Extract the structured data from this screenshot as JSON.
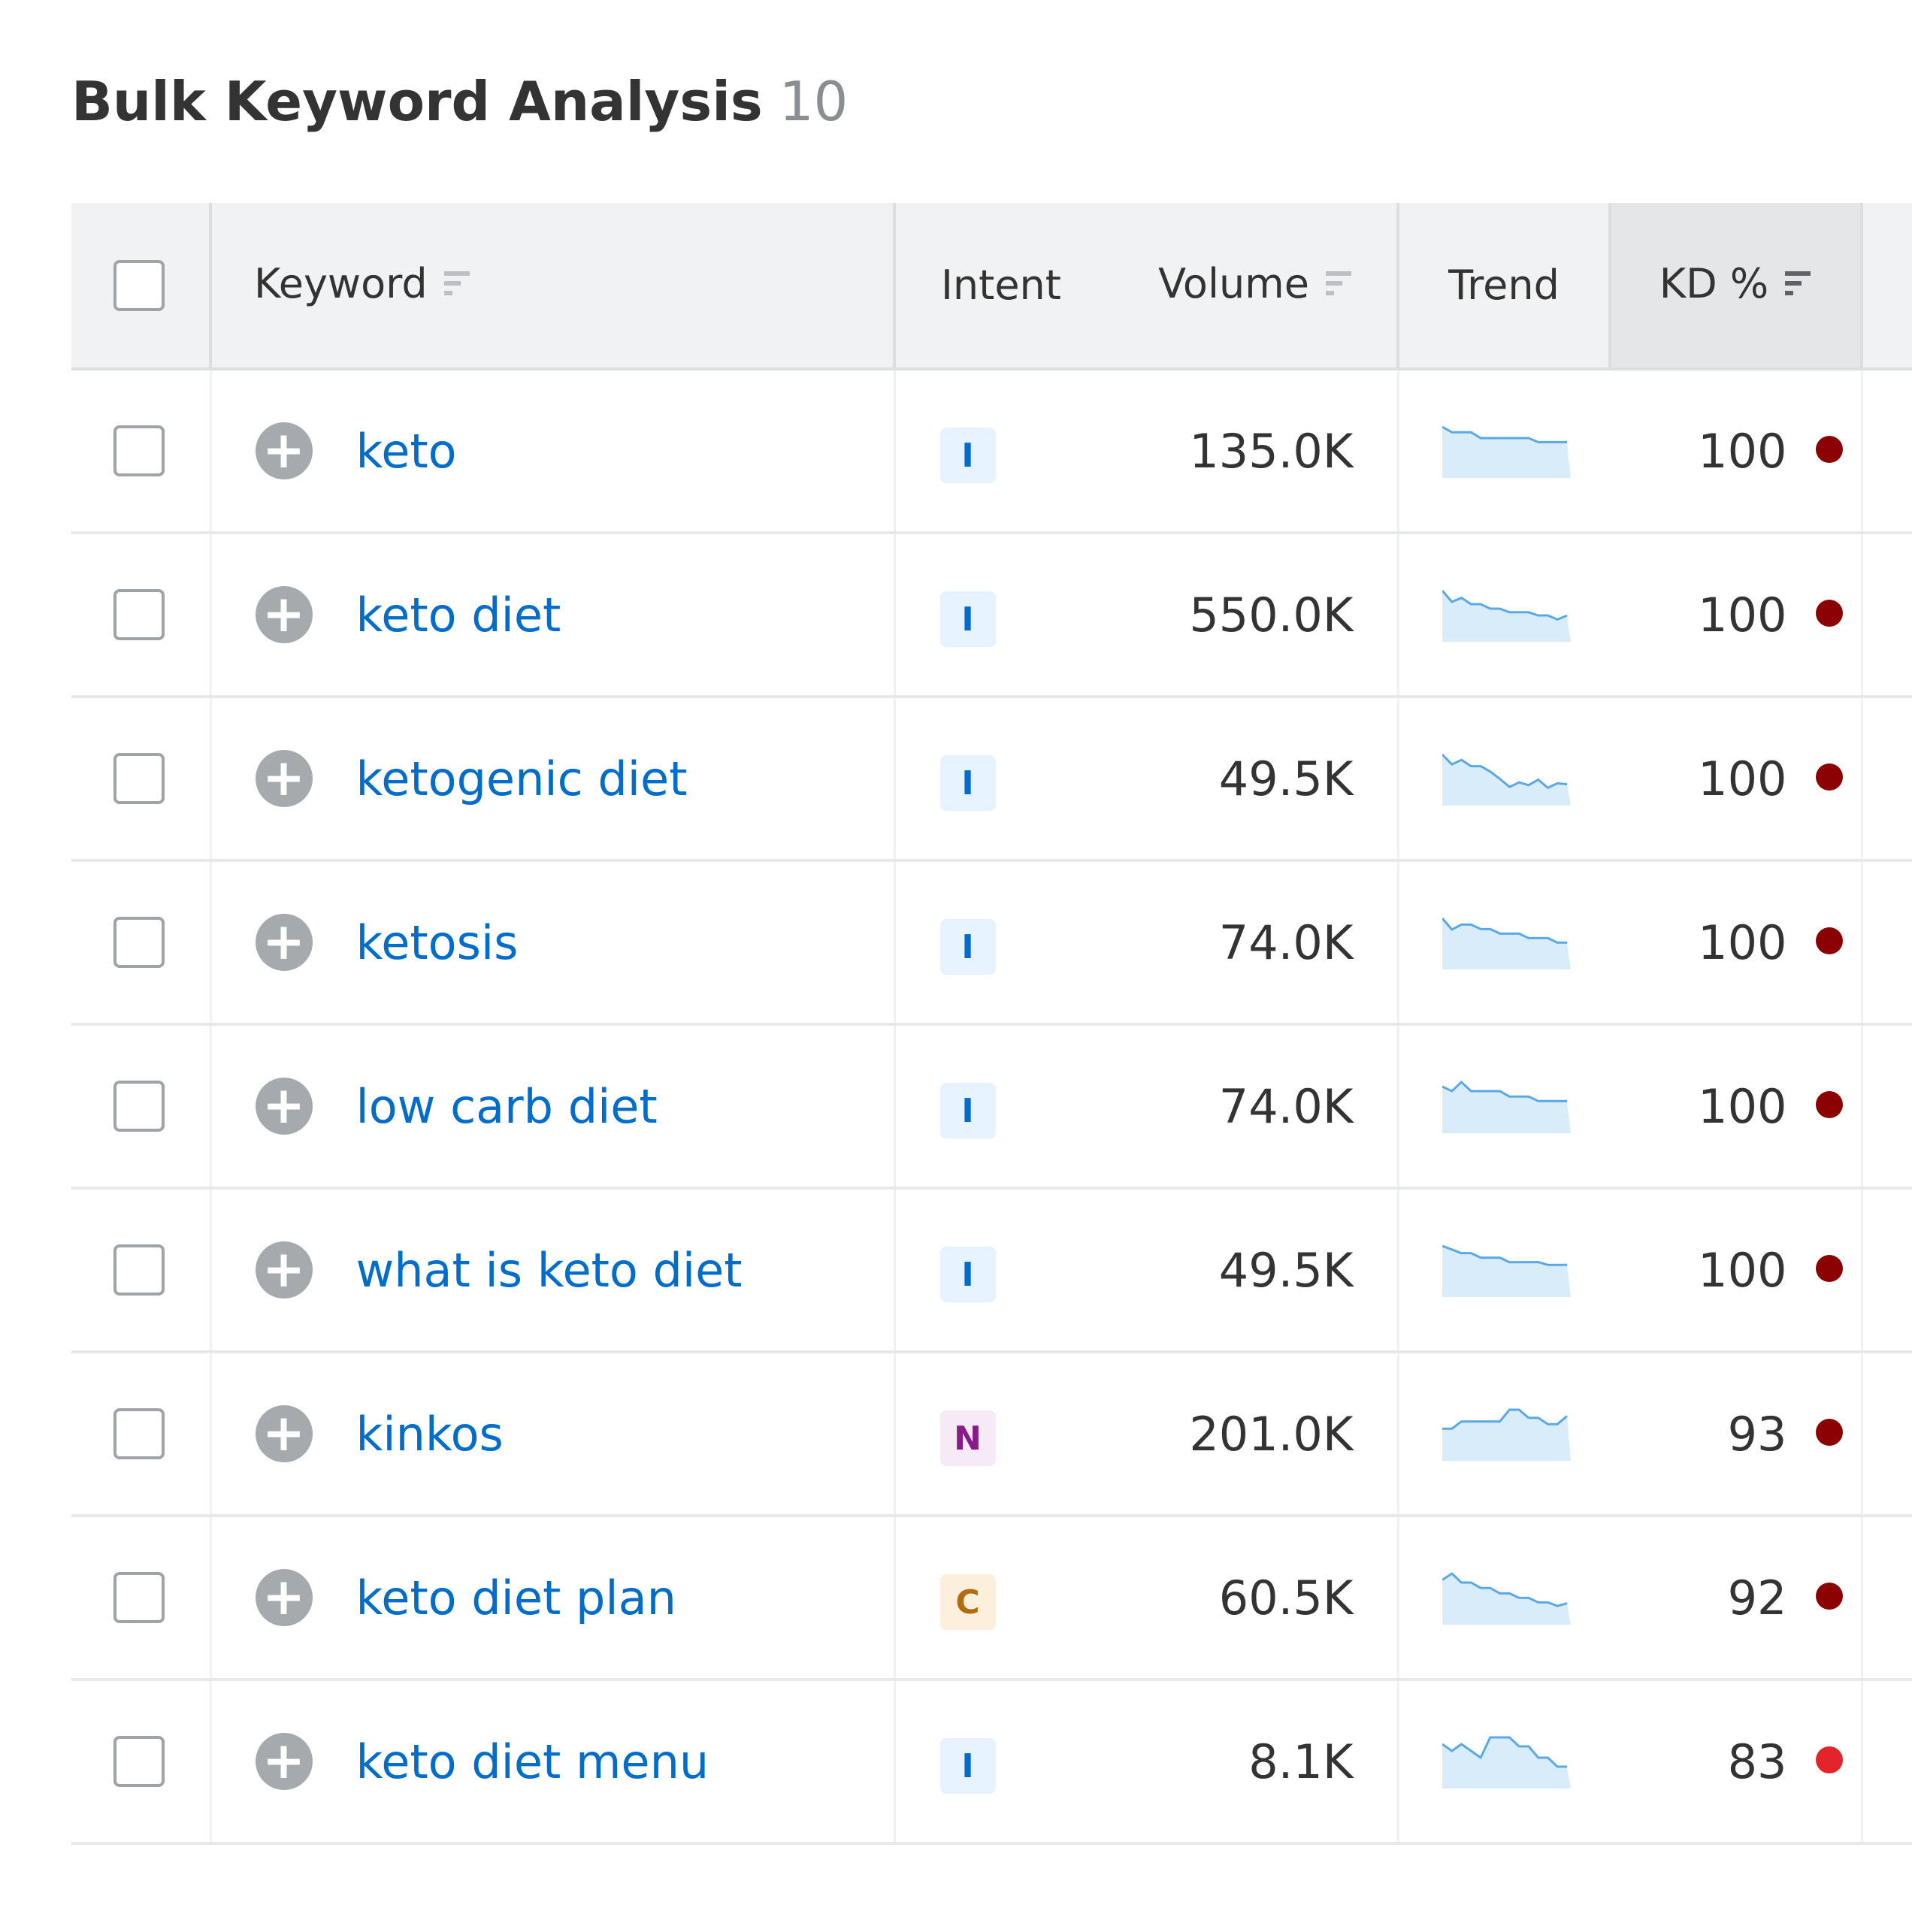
{
  "header": {
    "title": "Bulk Keyword Analysis",
    "count": "10"
  },
  "columns": {
    "keyword": "Keyword",
    "intent": "Intent",
    "volume": "Volume",
    "trend": "Trend",
    "kd": "KD %"
  },
  "colors": {
    "link": "#006dca",
    "kd_very_hard": "#8b0000",
    "kd_hard": "#e3242b",
    "trend_line": "#5aa9e6",
    "trend_fill": "#d9ecfa"
  },
  "rows": [
    {
      "keyword": "keto",
      "intent": "I",
      "volume": "135.0K",
      "kd": "100",
      "kd_color": "#8b0000",
      "trend": [
        1,
        0.88,
        0.88,
        0.88,
        0.75,
        0.75,
        0.75,
        0.75,
        0.75,
        0.75,
        0.66,
        0.66,
        0.66,
        0.66
      ]
    },
    {
      "keyword": "keto diet",
      "intent": "I",
      "volume": "550.0K",
      "kd": "100",
      "kd_color": "#8b0000",
      "trend": [
        1,
        0.75,
        0.84,
        0.7,
        0.7,
        0.6,
        0.6,
        0.52,
        0.52,
        0.52,
        0.45,
        0.45,
        0.36,
        0.45
      ]
    },
    {
      "keyword": "ketogenic diet",
      "intent": "I",
      "volume": "49.5K",
      "kd": "100",
      "kd_color": "#8b0000",
      "trend": [
        1,
        0.78,
        0.88,
        0.74,
        0.74,
        0.62,
        0.46,
        0.28,
        0.38,
        0.32,
        0.44,
        0.26,
        0.36,
        0.34
      ]
    },
    {
      "keyword": "ketosis",
      "intent": "I",
      "volume": "74.0K",
      "kd": "100",
      "kd_color": "#8b0000",
      "trend": [
        1,
        0.75,
        0.86,
        0.86,
        0.76,
        0.76,
        0.66,
        0.66,
        0.66,
        0.56,
        0.56,
        0.56,
        0.46,
        0.46
      ]
    },
    {
      "keyword": "low carb diet",
      "intent": "I",
      "volume": "74.0K",
      "kd": "100",
      "kd_color": "#8b0000",
      "trend": [
        0.9,
        0.8,
        1,
        0.8,
        0.8,
        0.8,
        0.8,
        0.68,
        0.68,
        0.68,
        0.58,
        0.58,
        0.58,
        0.58
      ]
    },
    {
      "keyword": "what is keto diet",
      "intent": "I",
      "volume": "49.5K",
      "kd": "100",
      "kd_color": "#8b0000",
      "trend": [
        1,
        0.92,
        0.84,
        0.84,
        0.74,
        0.74,
        0.74,
        0.64,
        0.64,
        0.64,
        0.64,
        0.58,
        0.58,
        0.58
      ]
    },
    {
      "keyword": "kinkos",
      "intent": "N",
      "volume": "201.0K",
      "kd": "93",
      "kd_color": "#8b0000",
      "trend": [
        0.58,
        0.58,
        0.74,
        0.74,
        0.74,
        0.74,
        0.74,
        1,
        1,
        0.82,
        0.82,
        0.68,
        0.68,
        0.86
      ]
    },
    {
      "keyword": "keto diet plan",
      "intent": "C",
      "volume": "60.5K",
      "kd": "92",
      "kd_color": "#8b0000",
      "trend": [
        0.86,
        1,
        0.8,
        0.8,
        0.68,
        0.68,
        0.56,
        0.56,
        0.46,
        0.46,
        0.36,
        0.36,
        0.28,
        0.34
      ]
    },
    {
      "keyword": "keto diet menu",
      "intent": "I",
      "volume": "8.1K",
      "kd": "83",
      "kd_color": "#e3242b",
      "trend": [
        0.85,
        0.7,
        0.85,
        0.7,
        0.55,
        1,
        1,
        1,
        0.8,
        0.8,
        0.55,
        0.55,
        0.35,
        0.35
      ]
    }
  ]
}
